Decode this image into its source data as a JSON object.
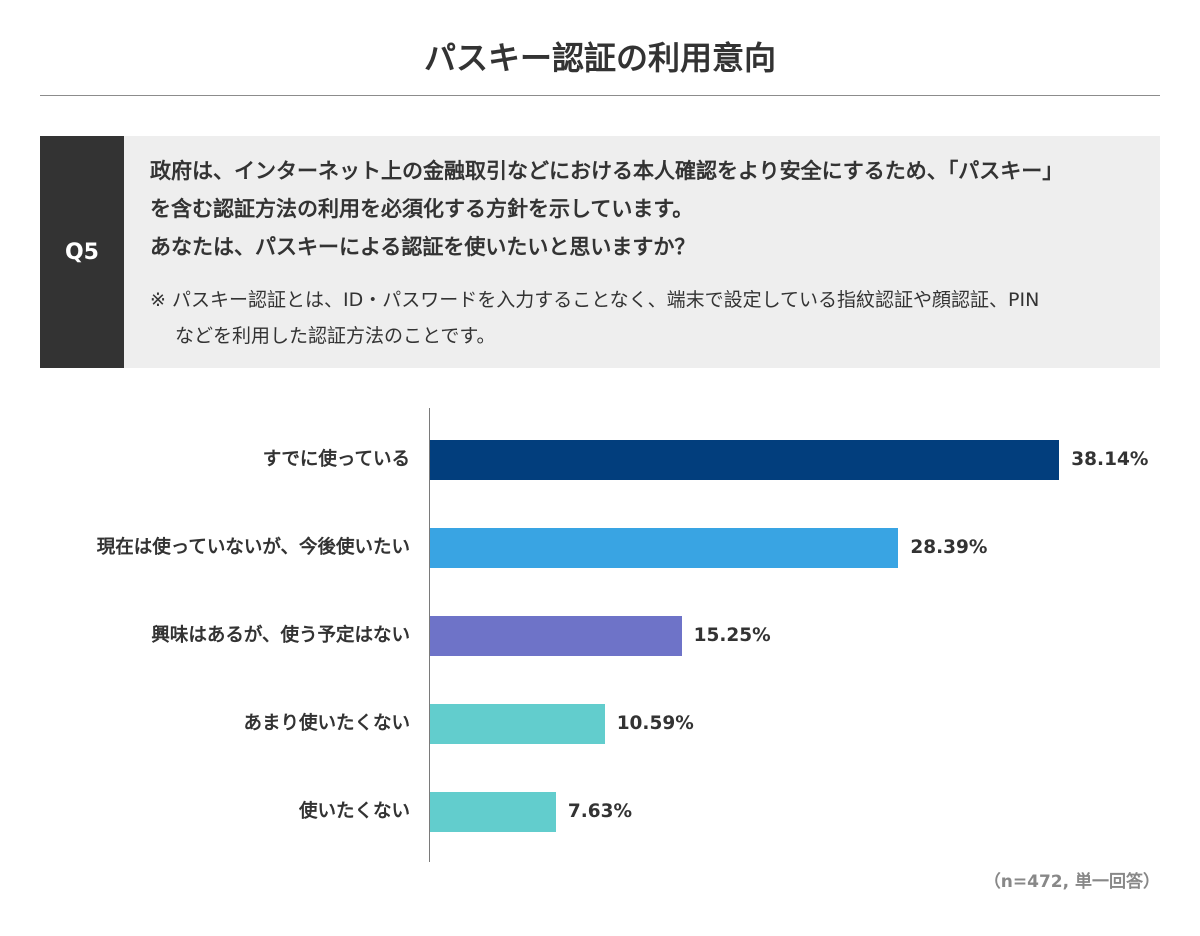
{
  "question": {
    "number": "Q5",
    "lines": [
      "政府は、インターネット上の金融取引などにおける本人確認をより安全にするため、「パスキー」",
      "を含む認証方法の利用を必須化する方針を示しています。",
      "あなたは、パスキーによる認証を使いたいと思いますか？"
    ],
    "note_lines": [
      "※ パスキー認証とは、ID・パスワードを入力することなく、端末で設定している指紋認証や顔認証、PIN",
      "などを利用した認証方法のことです。"
    ]
  },
  "chart_data": {
    "type": "bar",
    "orientation": "horizontal",
    "title": "パスキー認証の利用意向",
    "categories": [
      "すでに使っている",
      "現在は使っていないが、今後使いたい",
      "興味はあるが、使う予定はない",
      "あまり使いたくない",
      "使いたくない"
    ],
    "values": [
      38.14,
      28.39,
      15.25,
      10.59,
      7.63
    ],
    "data_labels": [
      "38.14%",
      "28.39%",
      "15.25%",
      "10.59%",
      "7.63%"
    ],
    "colors": [
      "#023e7d",
      "#39a4e3",
      "#6e73c8",
      "#62cdcd",
      "#62cdcd"
    ],
    "grid": false,
    "legend": "none",
    "annotation": "（n=472, 単一回答）"
  }
}
